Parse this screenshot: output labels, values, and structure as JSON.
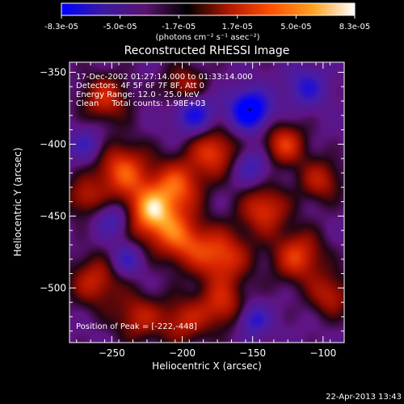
{
  "chart_data": {
    "type": "heatmap",
    "title": "Reconstructed RHESSI Image",
    "xlabel": "Heliocentric X (arcsec)",
    "ylabel": "Heliocentric Y (arcsec)",
    "xlim": [
      -280,
      -85
    ],
    "ylim": [
      -538,
      -343
    ],
    "x_ticks": [
      -250,
      -200,
      -150,
      -100
    ],
    "y_ticks": [
      -350,
      -400,
      -450,
      -500
    ],
    "colorbar": {
      "ticks": [
        "-8.3e-05",
        "-5.0e-05",
        "-1.7e-05",
        "1.7e-05",
        "5.0e-05",
        "8.3e-05"
      ],
      "unit_label": "(photons cm⁻² s⁻¹ asec⁻²)",
      "range": [
        -8.3e-05,
        8.3e-05
      ],
      "colors": [
        "#0000ff",
        "#3a1aa0",
        "#5a1470",
        "#000000",
        "#b01800",
        "#ff5000",
        "#ffa020",
        "#ffffff"
      ]
    },
    "annotations": [
      "17-Dec-2002 01:27:14.000 to 01:33:14.000",
      "Detectors: 4F 5F 6F 7F 8F, Att 0",
      "Energy Range: 12.0 - 25.0 keV",
      "Clean     Total counts: 1.98E+03"
    ],
    "peak_label": "Position of Peak = [-222,-448]",
    "peak": [
      -222,
      -448
    ],
    "min_marker": [
      -152,
      -376
    ],
    "sources": [
      {
        "x": -222,
        "y": -448,
        "a": 1.0,
        "s": 14
      },
      {
        "x": -243,
        "y": -418,
        "a": 0.78,
        "s": 14
      },
      {
        "x": -203,
        "y": -428,
        "a": 0.7,
        "s": 13
      },
      {
        "x": -178,
        "y": -405,
        "a": 0.72,
        "s": 12
      },
      {
        "x": -200,
        "y": -467,
        "a": 0.68,
        "s": 13
      },
      {
        "x": -172,
        "y": -478,
        "a": 0.75,
        "s": 14
      },
      {
        "x": -142,
        "y": -445,
        "a": 0.7,
        "s": 12
      },
      {
        "x": -118,
        "y": -478,
        "a": 0.72,
        "s": 13
      },
      {
        "x": -128,
        "y": -400,
        "a": 0.7,
        "s": 11
      },
      {
        "x": -102,
        "y": -425,
        "a": 0.55,
        "s": 11
      },
      {
        "x": -255,
        "y": -368,
        "a": 0.62,
        "s": 12
      },
      {
        "x": -198,
        "y": -360,
        "a": 0.55,
        "s": 11
      },
      {
        "x": -262,
        "y": -495,
        "a": 0.6,
        "s": 13
      },
      {
        "x": -232,
        "y": -520,
        "a": 0.55,
        "s": 12
      },
      {
        "x": -200,
        "y": -523,
        "a": 0.55,
        "s": 12
      },
      {
        "x": -172,
        "y": -512,
        "a": 0.6,
        "s": 12
      },
      {
        "x": -95,
        "y": -505,
        "a": 0.55,
        "s": 11
      },
      {
        "x": -270,
        "y": -437,
        "a": 0.5,
        "s": 10
      },
      {
        "x": -152,
        "y": -376,
        "a": -1.0,
        "s": 10
      },
      {
        "x": -192,
        "y": -378,
        "a": -0.7,
        "s": 10
      },
      {
        "x": -248,
        "y": -452,
        "a": -0.5,
        "s": 9
      },
      {
        "x": -150,
        "y": -415,
        "a": -0.45,
        "s": 9
      },
      {
        "x": -112,
        "y": -360,
        "a": -0.5,
        "s": 10
      },
      {
        "x": -240,
        "y": -480,
        "a": -0.45,
        "s": 8
      },
      {
        "x": -150,
        "y": -522,
        "a": -0.55,
        "s": 8
      },
      {
        "x": -268,
        "y": -400,
        "a": -0.4,
        "s": 9
      }
    ]
  },
  "footer": {
    "timestamp": "22-Apr-2013 13:43"
  }
}
